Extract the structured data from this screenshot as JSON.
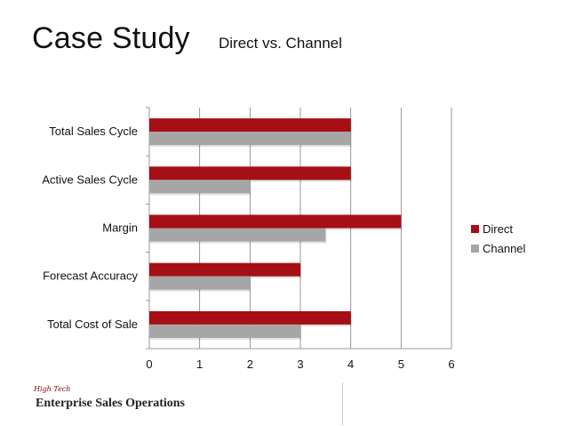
{
  "slide": {
    "title": "Case Study",
    "subtitle": "Direct vs. Channel"
  },
  "footer": {
    "brand_small": "High Tech",
    "brand": "Enterprise Sales Operations"
  },
  "chart_data": {
    "type": "bar",
    "orientation": "horizontal",
    "categories": [
      "Total Sales Cycle",
      "Active Sales Cycle",
      "Margin",
      "Forecast Accuracy",
      "Total Cost of Sale"
    ],
    "series": [
      {
        "name": "Direct",
        "color": "#a50f15",
        "values": [
          4,
          4,
          5,
          3,
          4
        ]
      },
      {
        "name": "Channel",
        "color": "#a6a6a6",
        "values": [
          4,
          2,
          3.5,
          2,
          3
        ]
      }
    ],
    "xlim": [
      0,
      6
    ],
    "xticks": [
      "0",
      "1",
      "2",
      "3",
      "4",
      "5",
      "6"
    ],
    "grid": "vertical",
    "legend": "right"
  }
}
